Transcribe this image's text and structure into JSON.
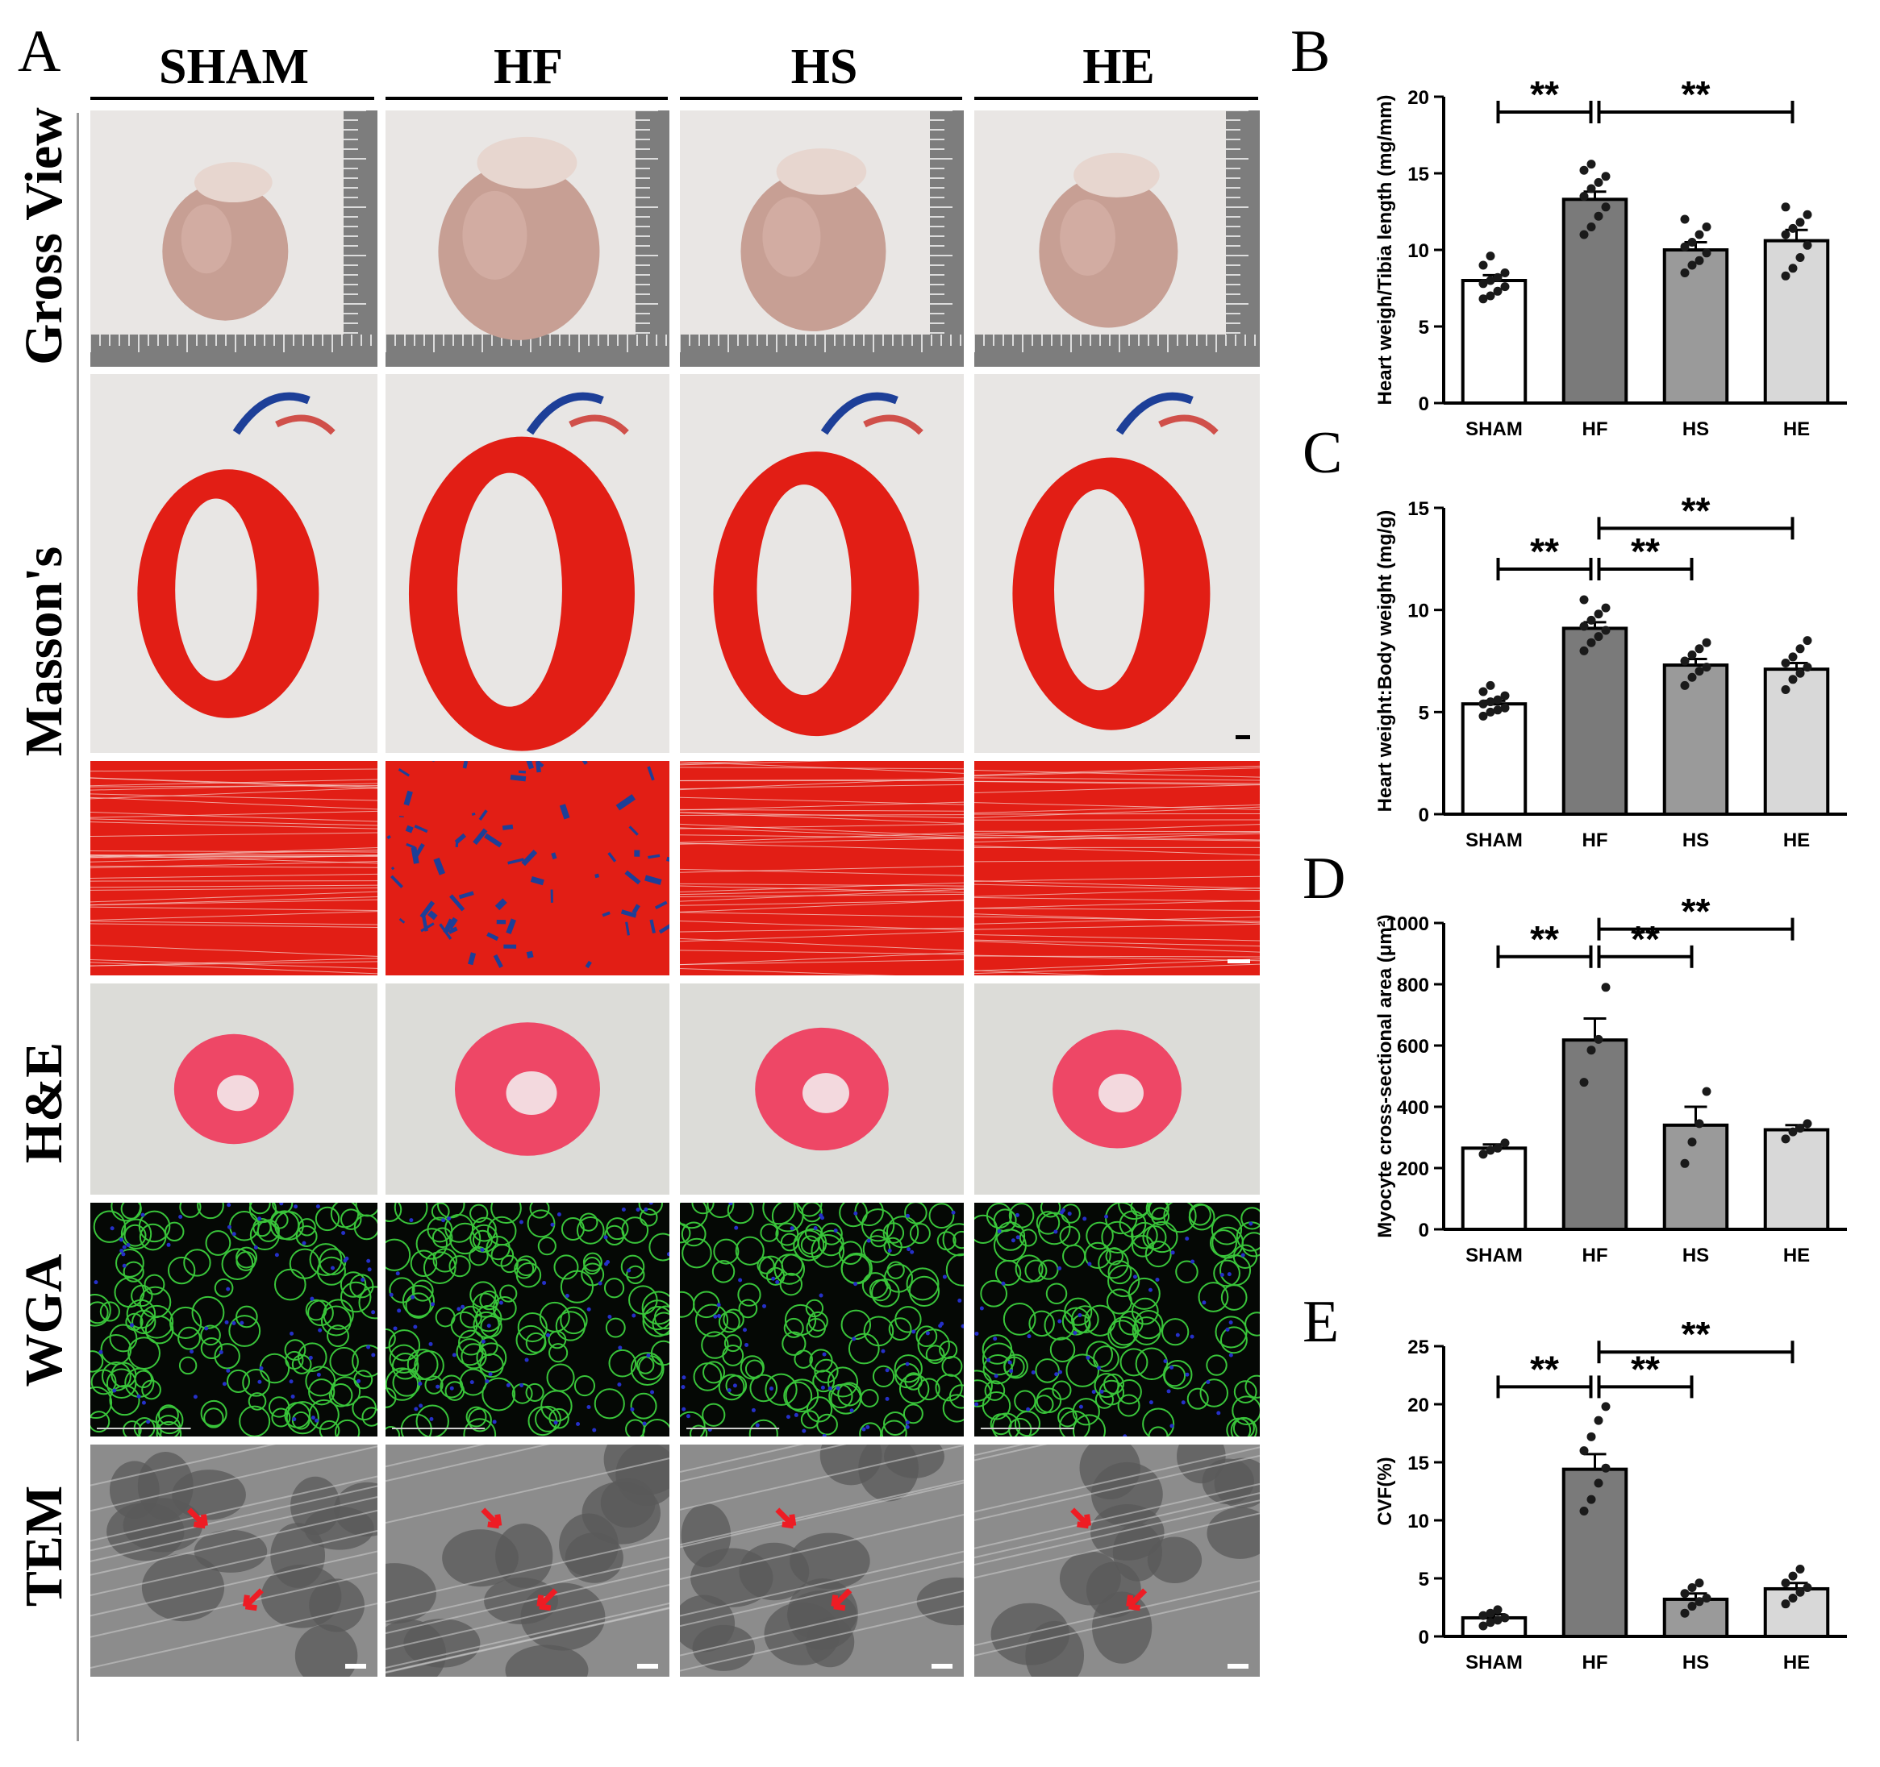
{
  "figure": {
    "panel_letters": {
      "A": "A",
      "B": "B",
      "C": "C",
      "D": "D",
      "E": "E"
    },
    "columns": [
      "SHAM",
      "HF",
      "HS",
      "HE"
    ],
    "rows": [
      "Gross View",
      "Masson's",
      "H&E",
      "WGA",
      "TEM"
    ],
    "colors": {
      "gross_bg": "#e9e6e4",
      "gross_heart": "#c79f94",
      "gross_atria": "#e7d6cf",
      "masson_bg": "#e8e6e4",
      "masson_red": "#e21e15",
      "masson_blue": "#1d3f98",
      "he_bg": "#dcdcd8",
      "he_pink": "#ee4766",
      "wga_bg": "#050805",
      "wga_green": "#39c43a",
      "wga_blue": "#2530c8",
      "tem_bg": "#8c8c8c",
      "arrow_red": "#ee1c24",
      "bar_sham": "#ffffff",
      "bar_hf": "#7a7a7a",
      "bar_hs": "#9a9a9a",
      "bar_he": "#d8d8d8"
    }
  },
  "chart_data": [
    {
      "panel": "B",
      "type": "bar",
      "categories": [
        "SHAM",
        "HF",
        "HS",
        "HE"
      ],
      "values": [
        8.0,
        13.3,
        10.0,
        10.6
      ],
      "errors": [
        0.35,
        0.5,
        0.5,
        0.7
      ],
      "points": [
        [
          6.8,
          7.0,
          7.3,
          7.6,
          7.8,
          8.0,
          8.2,
          8.5,
          9.0,
          9.6
        ],
        [
          11.0,
          11.5,
          12.2,
          12.8,
          13.5,
          14.0,
          14.4,
          14.8,
          15.2,
          15.6
        ],
        [
          8.5,
          9.0,
          9.3,
          9.8,
          10.2,
          10.5,
          11.0,
          11.5,
          12.0
        ],
        [
          8.3,
          8.8,
          9.5,
          10.3,
          11.0,
          11.4,
          11.8,
          12.3,
          12.8
        ]
      ],
      "ylabel": "Heart weigh/Tibia length (mg/mm)",
      "yticks": [
        "0",
        "5",
        "10",
        "15",
        "20"
      ],
      "ylim": [
        0,
        20
      ],
      "sig": [
        {
          "from": 0,
          "to": 1,
          "y": 19,
          "label": "**"
        },
        {
          "from": 1,
          "to": 3,
          "y": 19,
          "label": "**"
        }
      ]
    },
    {
      "panel": "C",
      "type": "bar",
      "categories": [
        "SHAM",
        "HF",
        "HS",
        "HE"
      ],
      "values": [
        5.4,
        9.1,
        7.3,
        7.1
      ],
      "errors": [
        0.15,
        0.3,
        0.3,
        0.3
      ],
      "points": [
        [
          4.8,
          5.0,
          5.1,
          5.2,
          5.4,
          5.5,
          5.6,
          5.8,
          6.0,
          6.3
        ],
        [
          8.0,
          8.4,
          8.7,
          9.0,
          9.2,
          9.5,
          9.8,
          10.1,
          10.5
        ],
        [
          6.3,
          6.7,
          7.0,
          7.2,
          7.5,
          7.8,
          8.1,
          8.4
        ],
        [
          6.1,
          6.6,
          6.9,
          7.2,
          7.4,
          7.7,
          8.1,
          8.5
        ]
      ],
      "ylabel": "Heart weight:Body weight (mg/g)",
      "yticks": [
        "0",
        "5",
        "10",
        "15"
      ],
      "ylim": [
        0,
        15
      ],
      "sig": [
        {
          "from": 0,
          "to": 1,
          "y": 12,
          "label": "**"
        },
        {
          "from": 1,
          "to": 2,
          "y": 12,
          "label": "**"
        },
        {
          "from": 1,
          "to": 3,
          "y": 14,
          "label": "**"
        }
      ]
    },
    {
      "panel": "D",
      "type": "bar",
      "categories": [
        "SHAM",
        "HF",
        "HS",
        "HE"
      ],
      "values": [
        265,
        618,
        340,
        325
      ],
      "errors": [
        12,
        70,
        60,
        15
      ],
      "points": [
        [
          245,
          258,
          265,
          282
        ],
        [
          480,
          585,
          620,
          790
        ],
        [
          215,
          285,
          345,
          450
        ],
        [
          295,
          318,
          330,
          345
        ]
      ],
      "ylabel": "Myocyte cross-sectional area (μm²)",
      "yticks": [
        "0",
        "200",
        "400",
        "600",
        "800",
        "1000"
      ],
      "ylim": [
        0,
        1000
      ],
      "sig": [
        {
          "from": 0,
          "to": 1,
          "y": 890,
          "label": "**"
        },
        {
          "from": 1,
          "to": 2,
          "y": 890,
          "label": "**"
        },
        {
          "from": 1,
          "to": 3,
          "y": 980,
          "label": "**"
        }
      ]
    },
    {
      "panel": "E",
      "type": "bar",
      "categories": [
        "SHAM",
        "HF",
        "HS",
        "HE"
      ],
      "values": [
        1.6,
        14.4,
        3.2,
        4.1
      ],
      "errors": [
        0.3,
        1.3,
        0.5,
        0.5
      ],
      "points": [
        [
          0.9,
          1.2,
          1.4,
          1.6,
          1.8,
          2.0,
          2.3
        ],
        [
          10.8,
          11.8,
          13.2,
          14.5,
          16.0,
          17.2,
          18.6,
          19.8
        ],
        [
          2.0,
          2.6,
          3.0,
          3.3,
          3.7,
          4.2,
          4.6
        ],
        [
          2.8,
          3.3,
          3.8,
          4.2,
          4.6,
          5.2,
          5.8
        ]
      ],
      "ylabel": "CVF(%)",
      "yticks": [
        "0",
        "5",
        "10",
        "15",
        "20",
        "25"
      ],
      "ylim": [
        0,
        25
      ],
      "sig": [
        {
          "from": 0,
          "to": 1,
          "y": 21.5,
          "label": "**"
        },
        {
          "from": 1,
          "to": 2,
          "y": 21.5,
          "label": "**"
        },
        {
          "from": 1,
          "to": 3,
          "y": 24.5,
          "label": "**"
        }
      ]
    }
  ]
}
